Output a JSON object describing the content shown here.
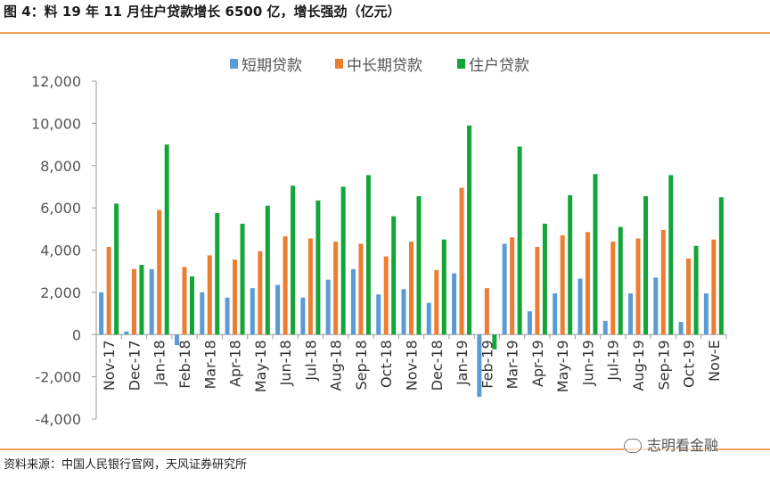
{
  "title": "图 4：料 19 年 11 月住户贷款增长 6500 亿，增长强劲（亿元）",
  "source": "资料来源：中国人民银行官网，天风证券研究所",
  "watermark": "志明看金融",
  "chart_data": {
    "type": "bar",
    "title": "图 4：料 19 年 11 月住户贷款增长 6500 亿，增长强劲（亿元）",
    "categories": [
      "Nov-17",
      "Dec-17",
      "Jan-18",
      "Feb-18",
      "Mar-18",
      "Apr-18",
      "May-18",
      "Jun-18",
      "Jul-18",
      "Aug-18",
      "Sep-18",
      "Oct-18",
      "Nov-18",
      "Dec-18",
      "Jan-19",
      "Feb-19",
      "Mar-19",
      "Apr-19",
      "May-19",
      "Jun-19",
      "Jul-19",
      "Aug-19",
      "Sep-19",
      "Oct-19",
      "Nov-E"
    ],
    "series": [
      {
        "name": "短期贷款",
        "color": "#5b9bd5",
        "values": [
          2000,
          150,
          3100,
          -500,
          2000,
          1750,
          2200,
          2350,
          1750,
          2600,
          3100,
          1900,
          2150,
          1500,
          2900,
          -2950,
          4300,
          1100,
          1950,
          2650,
          650,
          1950,
          2700,
          600,
          1950
        ]
      },
      {
        "name": "中长期贷款",
        "color": "#ed7d31",
        "values": [
          4150,
          3100,
          5900,
          3200,
          3750,
          3550,
          3950,
          4650,
          4550,
          4400,
          4300,
          3700,
          4400,
          3050,
          6950,
          2200,
          4600,
          4150,
          4700,
          4850,
          4400,
          4550,
          4950,
          3600,
          4500
        ]
      },
      {
        "name": "住户贷款",
        "color": "#13a538",
        "values": [
          6200,
          3300,
          9000,
          2750,
          5750,
          5250,
          6100,
          7050,
          6350,
          7000,
          7550,
          5600,
          6550,
          4500,
          9900,
          -700,
          8900,
          5250,
          6600,
          7600,
          5100,
          6550,
          7550,
          4200,
          6500
        ]
      }
    ],
    "y_ticks": [
      "12,000",
      "10,000",
      "8,000",
      "6,000",
      "4,000",
      "2,000",
      "0",
      "-2,000",
      "-4,000"
    ],
    "ylim": [
      -4000,
      12000
    ],
    "legend_position": "top-center",
    "xlabel": "",
    "ylabel": ""
  }
}
